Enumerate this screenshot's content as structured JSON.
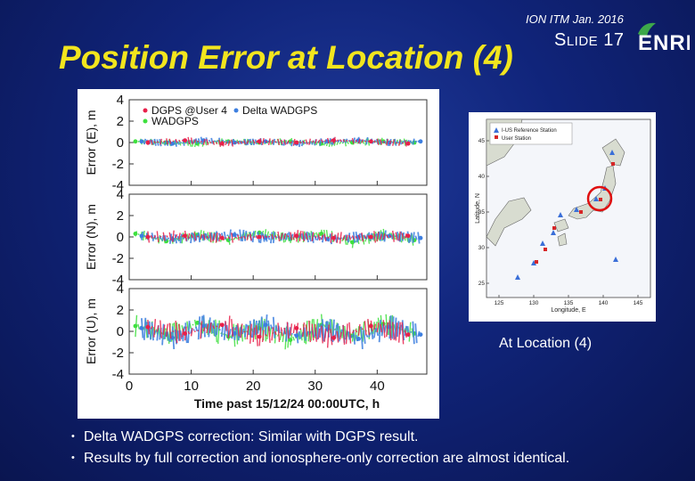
{
  "header": {
    "conference": "ION ITM Jan. 2016",
    "slide_label_first": "S",
    "slide_label_rest": "LIDE",
    "slide_number": "17",
    "logo_text": "ENRI"
  },
  "title": "Position Error at Location (4)",
  "map": {
    "caption": "At Location (4)",
    "legend": [
      "I-US Reference Station",
      "User Station"
    ],
    "xlabel": "Longitude, E",
    "ylabel": "Latitude, N",
    "xticks": [
      "125",
      "130",
      "135",
      "140",
      "145"
    ],
    "yticks": [
      "25",
      "30",
      "35",
      "40",
      "45"
    ],
    "colors": {
      "reference": "#3a6fd8",
      "user": "#d62728",
      "highlight": "#e01010"
    }
  },
  "bullets": [
    "Delta WADGPS correction: Similar with DGPS result.",
    "Results by full correction and ionosphere-only correction are almost identical."
  ],
  "chart_data": {
    "type": "scatter",
    "xlabel": "Time past 15/12/24 00:00UTC, h",
    "xlim": [
      0,
      48
    ],
    "xticks": [
      0,
      10,
      20,
      30,
      40
    ],
    "legend": [
      {
        "name": "DGPS @User 4",
        "color": "#e8204a"
      },
      {
        "name": "Delta WADGPS",
        "color": "#3d7fe0"
      },
      {
        "name": "WADGPS",
        "color": "#3ee03e"
      }
    ],
    "panels": [
      {
        "ylabel": "Error (E), m",
        "ylim": [
          -4,
          4
        ],
        "yticks": [
          4,
          2,
          0,
          -2,
          -4
        ],
        "series": [
          {
            "name": "WADGPS",
            "x": [
              1,
              6,
              11,
              16,
              21,
              26,
              31,
              36,
              41,
              46
            ],
            "y": [
              0.1,
              0.0,
              -0.1,
              0.1,
              0.0,
              0.1,
              -0.1,
              0.0,
              0.1,
              0.0
            ]
          },
          {
            "name": "Delta WADGPS",
            "x": [
              2,
              7,
              12,
              17,
              22,
              27,
              32,
              37,
              42,
              47
            ],
            "y": [
              0.1,
              -0.1,
              0.2,
              0.0,
              0.1,
              -0.1,
              0.1,
              0.2,
              0.0,
              0.1
            ]
          },
          {
            "name": "DGPS @User 4",
            "x": [
              3,
              9,
              15,
              21,
              27,
              33,
              39,
              45
            ],
            "y": [
              0.0,
              0.2,
              -0.1,
              0.1,
              0.0,
              0.2,
              0.1,
              -0.1
            ]
          }
        ]
      },
      {
        "ylabel": "Error (N), m",
        "ylim": [
          -4,
          4
        ],
        "yticks": [
          4,
          2,
          0,
          -2,
          -4
        ],
        "series": [
          {
            "name": "WADGPS",
            "x": [
              1,
              6,
              11,
              16,
              21,
              26,
              31,
              36,
              41,
              46
            ],
            "y": [
              0.3,
              -0.4,
              0.2,
              -0.3,
              0.4,
              -0.2,
              0.3,
              -0.5,
              0.2,
              -0.3
            ]
          },
          {
            "name": "Delta WADGPS",
            "x": [
              2,
              7,
              12,
              17,
              22,
              27,
              32,
              37,
              42,
              47
            ],
            "y": [
              0.1,
              -0.2,
              0.0,
              0.2,
              -0.1,
              0.1,
              -0.2,
              0.0,
              0.1,
              -0.1
            ]
          },
          {
            "name": "DGPS @User 4",
            "x": [
              3,
              9,
              15,
              21,
              27,
              33,
              39,
              45
            ],
            "y": [
              0.0,
              0.1,
              -0.1,
              0.0,
              0.1,
              -0.1,
              0.0,
              0.1
            ]
          }
        ]
      },
      {
        "ylabel": "Error (U), m",
        "ylim": [
          -4,
          4
        ],
        "yticks": [
          4,
          2,
          0,
          -2,
          -4
        ],
        "series": [
          {
            "name": "WADGPS",
            "x": [
              1,
              6,
              11,
              16,
              21,
              26,
              31,
              36,
              41,
              46
            ],
            "y": [
              0.5,
              -0.3,
              0.8,
              -0.5,
              0.3,
              -0.8,
              0.6,
              -0.4,
              0.7,
              -0.2
            ]
          },
          {
            "name": "Delta WADGPS",
            "x": [
              2,
              7,
              12,
              17,
              22,
              27,
              32,
              37,
              42,
              47
            ],
            "y": [
              0.3,
              -0.6,
              0.5,
              -0.2,
              0.6,
              -0.4,
              0.2,
              -0.7,
              0.4,
              -0.3
            ]
          },
          {
            "name": "DGPS @User 4",
            "x": [
              3,
              9,
              15,
              21,
              27,
              33,
              39,
              45
            ],
            "y": [
              0.4,
              -0.2,
              0.6,
              -0.5,
              0.3,
              -0.6,
              0.5,
              -0.3
            ]
          }
        ]
      }
    ]
  }
}
